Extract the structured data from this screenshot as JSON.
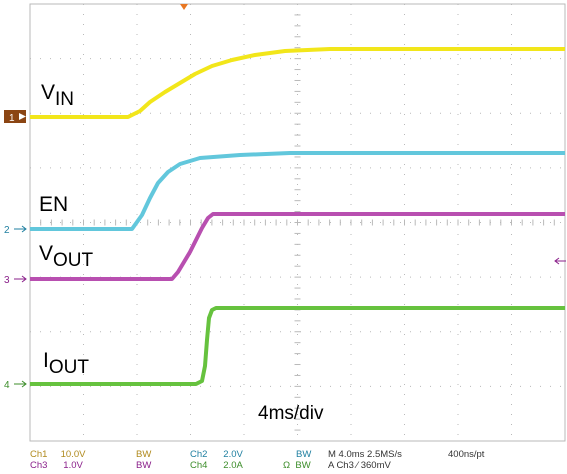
{
  "labels": {
    "vin": {
      "main": "V",
      "sub": "IN"
    },
    "en": "EN",
    "vout": {
      "main": "V",
      "sub": "OUT"
    },
    "iout": {
      "main": "I",
      "sub": "OUT"
    },
    "timebase": "4ms/div"
  },
  "markers": {
    "ch1": "1",
    "ch2": "2",
    "ch3": "3",
    "ch4": "4"
  },
  "status": {
    "ch1_name": "Ch1",
    "ch1_scale": "10.0V",
    "ch3_name": "Ch3",
    "ch3_scale": "1.0V",
    "ch2_name": "Ch2",
    "ch2_scale": "2.0V",
    "ch4_name": "Ch4",
    "ch4_scale": "2.0A",
    "bw": "BW",
    "ohm": "Ω",
    "horizontal": "M 4.0ms 2.5MS/s",
    "record": "400ns/pt",
    "trigger": "A Ch3 ⁄ 360mV"
  },
  "colors": {
    "ch1": "#f2e61a",
    "ch2": "#62c7dc",
    "ch3": "#b84fb0",
    "ch4": "#66c23e",
    "grid": "#b9b9b9",
    "marker_ch1": "#8b4513"
  }
}
